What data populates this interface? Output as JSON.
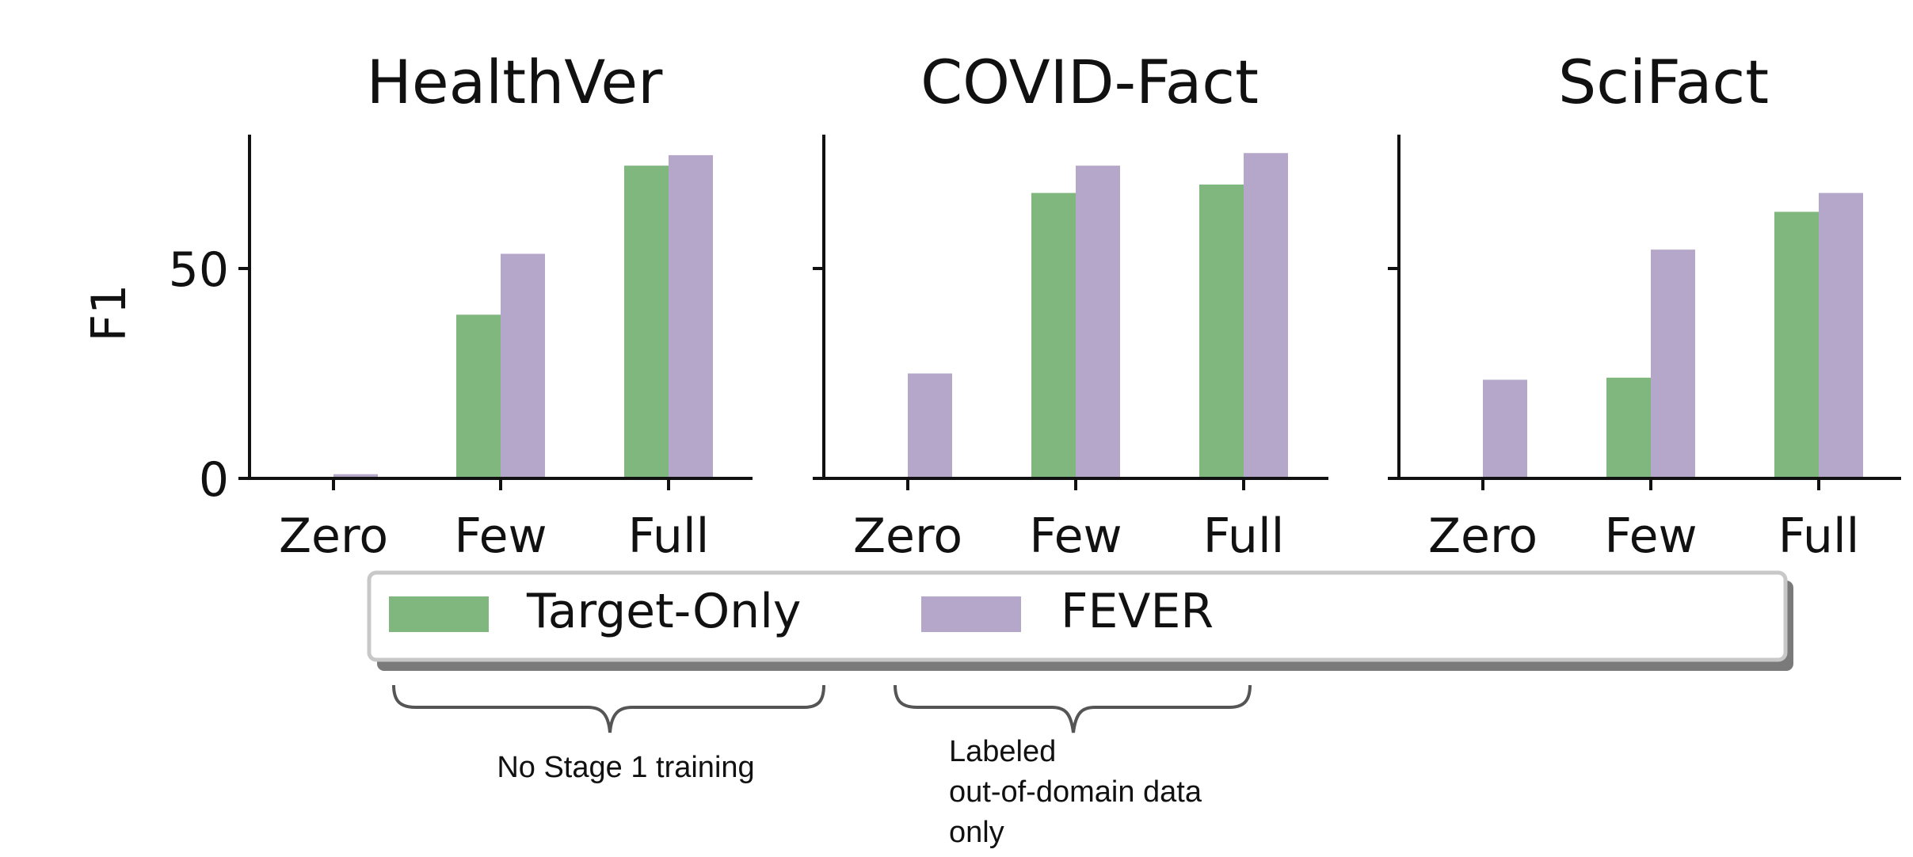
{
  "chart_data": {
    "type": "bar",
    "ylabel": "F1",
    "ylim": [
      0,
      82
    ],
    "yticks": [
      0,
      50
    ],
    "categories": [
      "Zero",
      "Few",
      "Full"
    ],
    "colors": {
      "Target-Only": "#7fb77e",
      "FEVER": "#b5a7c9"
    },
    "legend": {
      "placement": "bottom-center",
      "entries": [
        "Target-Only",
        "FEVER"
      ]
    },
    "panels": [
      {
        "title": "HealthVer",
        "series": [
          {
            "name": "Target-Only",
            "values": [
              0,
              39,
              74.5
            ]
          },
          {
            "name": "FEVER",
            "values": [
              1,
              53.5,
              77
            ]
          }
        ]
      },
      {
        "title": "COVID-Fact",
        "series": [
          {
            "name": "Target-Only",
            "values": [
              0,
              68,
              70
            ]
          },
          {
            "name": "FEVER",
            "values": [
              25,
              74.5,
              77.5
            ]
          }
        ]
      },
      {
        "title": "SciFact",
        "series": [
          {
            "name": "Target-Only",
            "values": [
              0,
              24,
              63.5
            ]
          },
          {
            "name": "FEVER",
            "values": [
              23.5,
              54.5,
              68
            ]
          }
        ]
      }
    ]
  },
  "annotations": {
    "brace1": "No Stage 1 training",
    "brace2_lines": [
      "Labeled",
      "out-of-domain data",
      "only"
    ]
  }
}
